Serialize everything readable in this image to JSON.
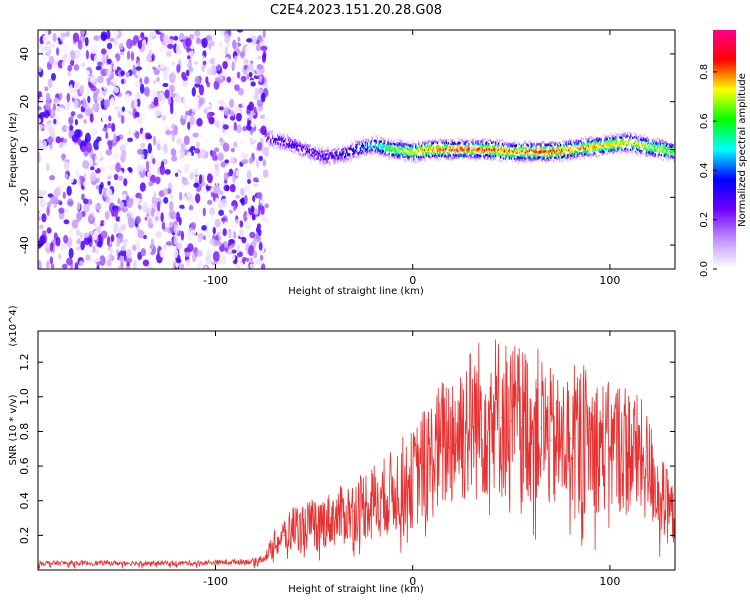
{
  "figure": {
    "title": "C2E4.2023.151.20.28.G08"
  },
  "chart_data": [
    {
      "type": "heatmap",
      "xlabel": "Height of straight line (km)",
      "ylabel": "Frequency (Hz)",
      "xlim": [
        -190,
        133
      ],
      "ylim": [
        -50,
        50
      ],
      "xticks": [
        -100,
        0,
        100
      ],
      "yticks": [
        -40,
        -20,
        0,
        20,
        40
      ],
      "grid": false,
      "colorbar": {
        "label": "Normalized spectral amplitude",
        "range": [
          0.0,
          0.97
        ],
        "ticks": [
          "0.0",
          "0.2",
          "0.4",
          "0.6",
          "0.8"
        ],
        "colors": [
          "#ffffff",
          "#c090ff",
          "#7000ff",
          "#0000ff",
          "#00ffff",
          "#00ff00",
          "#ffff00",
          "#ff0000",
          "#ff0088"
        ]
      },
      "noise_region": {
        "x_start": -190,
        "x_end": -74,
        "freq_range": [
          -50,
          50
        ]
      },
      "signal_ridge": {
        "x": [
          -74,
          -65,
          -55,
          -45,
          -35,
          -25,
          -20,
          -10,
          0,
          10,
          20,
          30,
          40,
          50,
          60,
          70,
          80,
          90,
          100,
          110,
          120,
          133
        ],
        "frequency": [
          5,
          3,
          0,
          -3,
          -2,
          1,
          2,
          0,
          -1,
          0,
          0,
          0,
          0,
          -1,
          -1,
          -1,
          0,
          1,
          2,
          3,
          1,
          -1
        ],
        "peak_amplitude": [
          0.3,
          0.35,
          0.35,
          0.35,
          0.4,
          0.45,
          0.55,
          0.7,
          0.8,
          0.85,
          0.9,
          0.9,
          0.9,
          0.85,
          0.9,
          0.9,
          0.85,
          0.85,
          0.8,
          0.8,
          0.75,
          0.7
        ]
      }
    },
    {
      "type": "line",
      "xlabel": "Height of straight line (km)",
      "ylabel": "SNR (10 * v/v)",
      "y_multiplier": "(x10^4)",
      "xlim": [
        -190,
        133
      ],
      "ylim": [
        0,
        1.38
      ],
      "xticks": [
        -100,
        0,
        100
      ],
      "yticks": [
        0.2,
        0.4,
        0.6,
        0.8,
        1.0,
        1.2
      ],
      "grid": false,
      "series": [
        {
          "color": "#e83030",
          "x": [
            -190,
            -150,
            -110,
            -80,
            -74,
            -70,
            -65,
            -60,
            -55,
            -50,
            -45,
            -40,
            -35,
            -30,
            -25,
            -20,
            -15,
            -10,
            -5,
            0,
            5,
            10,
            15,
            20,
            25,
            30,
            35,
            40,
            45,
            50,
            55,
            60,
            65,
            70,
            75,
            80,
            85,
            90,
            95,
            100,
            105,
            110,
            115,
            120,
            125,
            133
          ],
          "y": [
            0.04,
            0.04,
            0.04,
            0.05,
            0.08,
            0.15,
            0.2,
            0.25,
            0.25,
            0.27,
            0.28,
            0.3,
            0.32,
            0.34,
            0.38,
            0.4,
            0.42,
            0.45,
            0.5,
            0.52,
            0.6,
            0.65,
            0.72,
            0.78,
            0.82,
            0.85,
            0.88,
            0.9,
            0.88,
            0.86,
            0.85,
            0.85,
            0.82,
            0.75,
            0.72,
            0.76,
            0.78,
            0.75,
            0.72,
            0.7,
            0.72,
            0.7,
            0.65,
            0.58,
            0.45,
            0.3
          ]
        }
      ]
    }
  ]
}
